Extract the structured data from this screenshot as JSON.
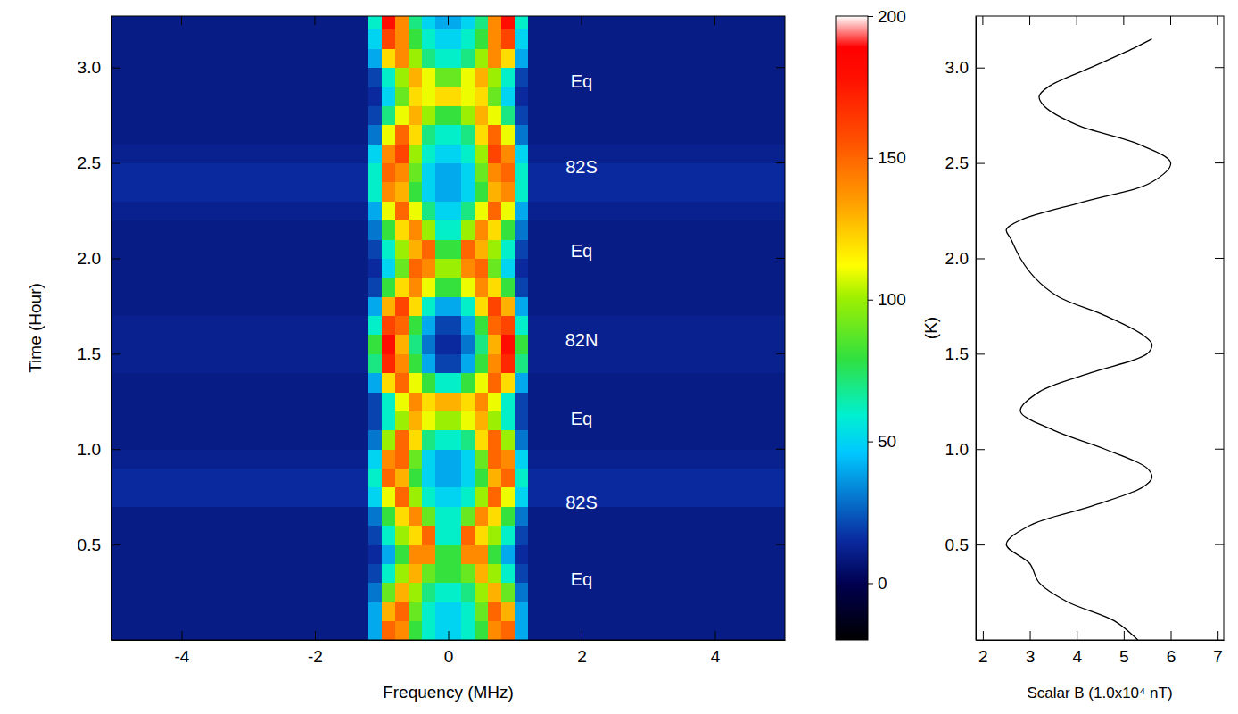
{
  "chart_data": [
    {
      "type": "heatmap",
      "x_label": "Frequency (MHz)",
      "y_label": "Time (Hour)",
      "xlim": [
        -5.05,
        5.05
      ],
      "ylim": [
        0,
        3.27
      ],
      "xticks": [
        -4,
        -2,
        0,
        2,
        4
      ],
      "yticks": [
        0.5,
        {
          "value": 1,
          "label": "1.0"
        },
        1.5,
        {
          "value": 2,
          "label": "2.0"
        },
        2.5,
        {
          "value": 3,
          "label": "3.0"
        }
      ],
      "x_edges": [
        -5.05,
        -1.2,
        -1.0,
        -0.8,
        -0.6,
        -0.4,
        -0.2,
        0,
        0.2,
        0.4,
        0.6,
        0.8,
        1.0,
        1.2,
        5.05
      ],
      "y_edges": [
        0,
        0.1,
        0.2,
        0.3,
        0.4,
        0.5,
        0.6,
        0.7,
        0.8,
        0.9,
        1.0,
        1.1,
        1.2,
        1.3,
        1.4,
        1.5,
        1.6,
        1.7,
        1.8,
        1.9,
        2.0,
        2.1,
        2.2,
        2.3,
        2.4,
        2.5,
        2.6,
        2.7,
        2.8,
        2.9,
        3.0,
        3.1,
        3.2,
        3.27
      ],
      "cells": [
        [
          10,
          40,
          150,
          140,
          80,
          60,
          50,
          50,
          60,
          80,
          140,
          150,
          40,
          10
        ],
        [
          10,
          40,
          130,
          150,
          90,
          60,
          50,
          50,
          60,
          90,
          150,
          130,
          40,
          10
        ],
        [
          10,
          30,
          90,
          130,
          100,
          70,
          60,
          60,
          70,
          100,
          130,
          90,
          30,
          10
        ],
        [
          10,
          20,
          60,
          100,
          130,
          90,
          80,
          80,
          90,
          130,
          100,
          60,
          20,
          10
        ],
        [
          10,
          15,
          40,
          80,
          140,
          140,
          80,
          80,
          140,
          140,
          80,
          40,
          15,
          10
        ],
        [
          10,
          20,
          60,
          100,
          120,
          150,
          60,
          60,
          150,
          120,
          100,
          60,
          20,
          10
        ],
        [
          10,
          30,
          80,
          120,
          140,
          90,
          60,
          60,
          90,
          140,
          120,
          80,
          30,
          10
        ],
        [
          15,
          50,
          110,
          150,
          100,
          60,
          50,
          50,
          60,
          100,
          150,
          110,
          50,
          15
        ],
        [
          15,
          60,
          150,
          130,
          80,
          50,
          40,
          40,
          50,
          80,
          130,
          150,
          60,
          15
        ],
        [
          12,
          50,
          140,
          150,
          90,
          50,
          40,
          40,
          50,
          90,
          150,
          140,
          50,
          12
        ],
        [
          10,
          30,
          100,
          150,
          120,
          70,
          60,
          60,
          70,
          120,
          150,
          100,
          30,
          10
        ],
        [
          10,
          20,
          60,
          100,
          130,
          110,
          100,
          100,
          110,
          130,
          100,
          60,
          20,
          10
        ],
        [
          10,
          20,
          60,
          110,
          140,
          120,
          130,
          130,
          120,
          140,
          110,
          60,
          20,
          10
        ],
        [
          10,
          40,
          120,
          150,
          110,
          80,
          60,
          60,
          80,
          110,
          150,
          120,
          40,
          10
        ],
        [
          12,
          70,
          170,
          140,
          80,
          40,
          20,
          20,
          40,
          80,
          140,
          170,
          70,
          12
        ],
        [
          12,
          80,
          180,
          130,
          70,
          30,
          15,
          15,
          30,
          70,
          130,
          180,
          80,
          12
        ],
        [
          12,
          60,
          160,
          150,
          80,
          40,
          20,
          20,
          40,
          80,
          150,
          160,
          60,
          12
        ],
        [
          10,
          40,
          130,
          160,
          120,
          60,
          40,
          40,
          60,
          120,
          160,
          130,
          40,
          10
        ],
        [
          10,
          20,
          80,
          120,
          140,
          110,
          80,
          80,
          110,
          140,
          120,
          80,
          20,
          10
        ],
        [
          10,
          15,
          50,
          90,
          150,
          140,
          100,
          100,
          140,
          150,
          90,
          50,
          15,
          10
        ],
        [
          10,
          20,
          60,
          100,
          130,
          150,
          80,
          80,
          150,
          130,
          100,
          60,
          20,
          10
        ],
        [
          10,
          30,
          80,
          120,
          140,
          100,
          60,
          60,
          100,
          140,
          120,
          80,
          30,
          10
        ],
        [
          12,
          40,
          110,
          150,
          110,
          70,
          50,
          50,
          70,
          110,
          150,
          110,
          40,
          12
        ],
        [
          15,
          60,
          140,
          130,
          80,
          50,
          40,
          40,
          50,
          80,
          130,
          140,
          60,
          15
        ],
        [
          15,
          60,
          150,
          140,
          90,
          50,
          40,
          40,
          50,
          90,
          140,
          150,
          60,
          15
        ],
        [
          12,
          50,
          140,
          160,
          100,
          60,
          50,
          50,
          60,
          100,
          160,
          140,
          50,
          12
        ],
        [
          10,
          30,
          110,
          150,
          120,
          70,
          60,
          60,
          70,
          120,
          150,
          110,
          30,
          10
        ],
        [
          10,
          20,
          70,
          110,
          130,
          100,
          80,
          80,
          100,
          130,
          110,
          70,
          20,
          10
        ],
        [
          10,
          15,
          50,
          90,
          120,
          110,
          120,
          120,
          110,
          120,
          90,
          50,
          15,
          10
        ],
        [
          10,
          20,
          60,
          100,
          130,
          110,
          90,
          90,
          110,
          130,
          100,
          60,
          20,
          10
        ],
        [
          10,
          40,
          120,
          140,
          100,
          70,
          60,
          60,
          70,
          100,
          140,
          120,
          40,
          10
        ],
        [
          10,
          50,
          160,
          140,
          80,
          60,
          50,
          50,
          60,
          80,
          140,
          160,
          50,
          10
        ],
        [
          10,
          60,
          180,
          140,
          70,
          50,
          40,
          40,
          50,
          70,
          140,
          180,
          60,
          10
        ]
      ],
      "colorbar": {
        "range": [
          -20,
          200
        ],
        "ticks": [
          0,
          50,
          100,
          150,
          200
        ],
        "label": "(K)"
      },
      "annotations": [
        {
          "text": "Eq",
          "x": 2.0,
          "y": 0.32
        },
        {
          "text": "82S",
          "x": 2.0,
          "y": 0.72
        },
        {
          "text": "Eq",
          "x": 2.0,
          "y": 1.16
        },
        {
          "text": "82N",
          "x": 2.0,
          "y": 1.57
        },
        {
          "text": "Eq",
          "x": 2.0,
          "y": 2.04
        },
        {
          "text": "82S",
          "x": 2.0,
          "y": 2.48
        },
        {
          "text": "Eq",
          "x": 2.0,
          "y": 2.93
        }
      ]
    },
    {
      "type": "line",
      "x_label": "Scalar B (1.0x10⁴ nT)",
      "xlim": [
        1.85,
        7.13
      ],
      "ylim": [
        0,
        3.27
      ],
      "xticks": [
        2,
        3,
        4,
        5,
        6,
        7
      ],
      "yticks": [
        0.5,
        {
          "value": 1,
          "label": "1.0"
        },
        1.5,
        {
          "value": 2,
          "label": "2.0"
        },
        2.5,
        {
          "value": 3,
          "label": "3.0"
        }
      ],
      "color": "#000000",
      "x": [
        5.3,
        4.8,
        3.8,
        3.2,
        3.0,
        2.5,
        3.0,
        4.3,
        5.4,
        5.6,
        5.5,
        4.6,
        3.5,
        2.8,
        3.2,
        4.3,
        5.5,
        5.6,
        5.4,
        4.6,
        3.6,
        3.1,
        2.8,
        2.6,
        2.5,
        2.8,
        4.2,
        5.6,
        6.0,
        5.3,
        4.0,
        3.3,
        3.2,
        3.4,
        4.3,
        5.2,
        5.6
      ],
      "y": [
        0.0,
        0.1,
        0.2,
        0.3,
        0.4,
        0.5,
        0.6,
        0.7,
        0.8,
        0.85,
        0.9,
        1.0,
        1.1,
        1.2,
        1.3,
        1.4,
        1.5,
        1.55,
        1.6,
        1.7,
        1.8,
        1.9,
        2.0,
        2.1,
        2.15,
        2.2,
        2.3,
        2.4,
        2.5,
        2.6,
        2.7,
        2.8,
        2.85,
        2.9,
        3.0,
        3.1,
        3.15
      ]
    }
  ]
}
